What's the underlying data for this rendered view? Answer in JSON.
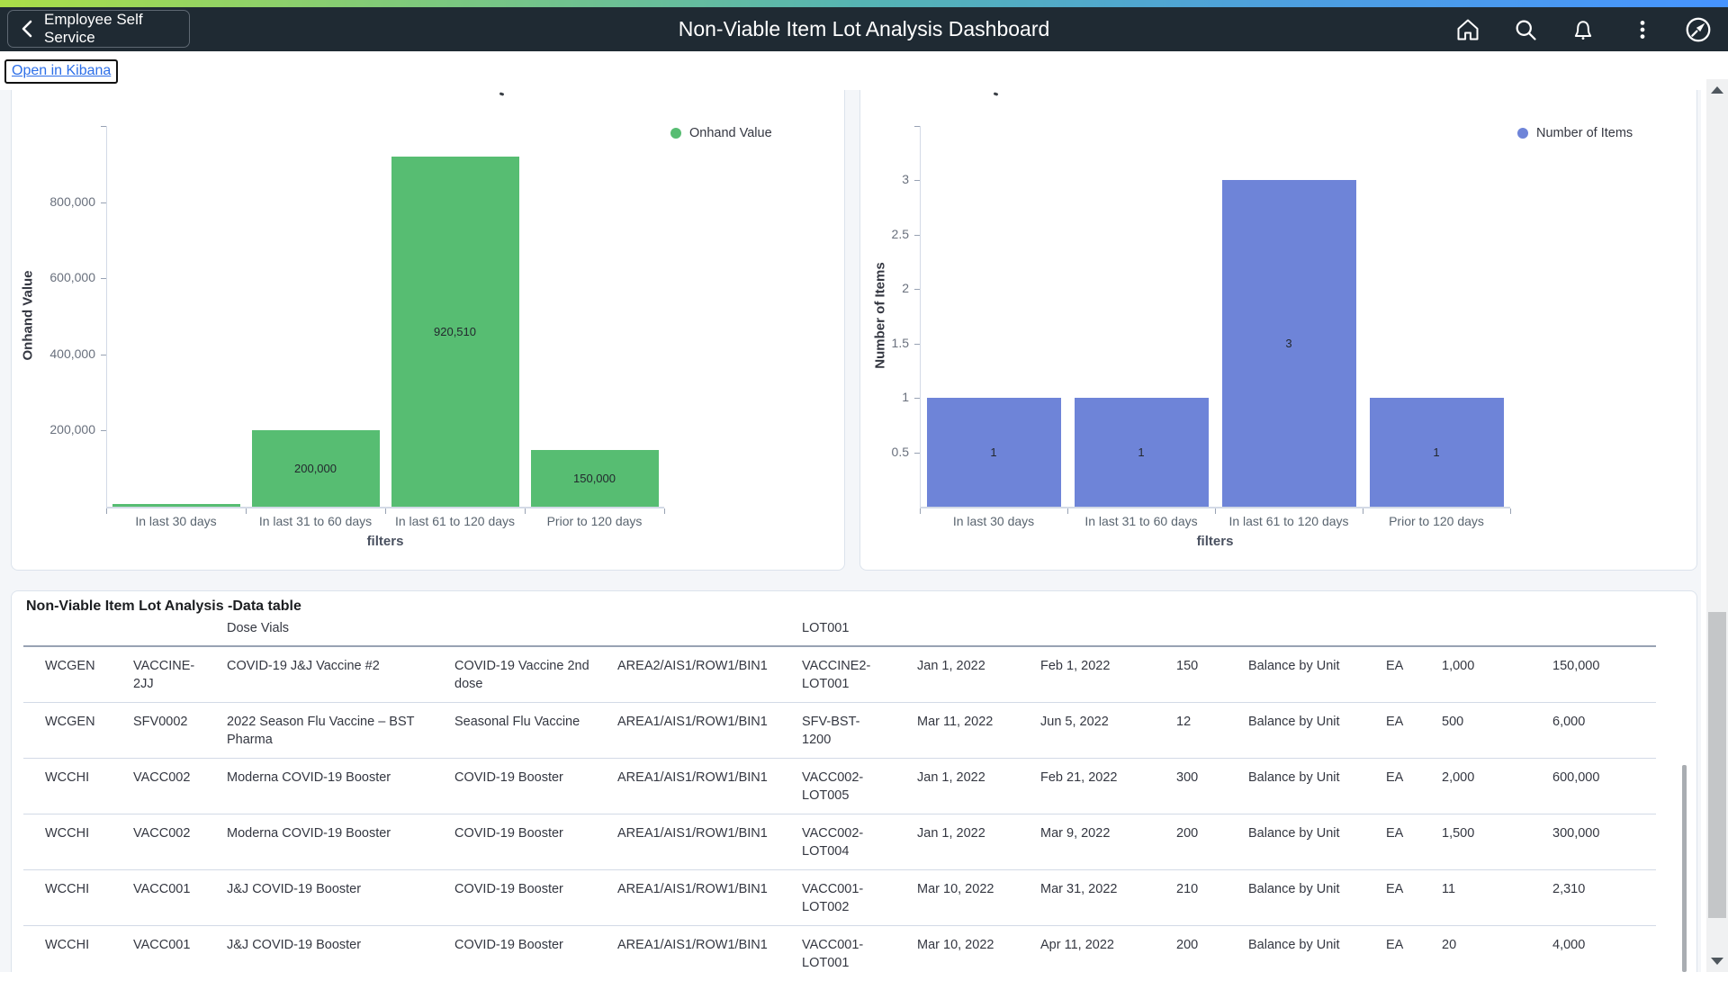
{
  "header": {
    "back_label": "Employee Self Service",
    "title": "Non-Viable Item Lot Analysis Dashboard",
    "icons": [
      "home-icon",
      "search-icon",
      "notifications-icon",
      "more-options-icon",
      "navbar-compass-icon"
    ]
  },
  "kibana_link": "Open in Kibana",
  "chart_data": [
    {
      "type": "bar",
      "legend_label": "Onhand Value",
      "legend_position": "top-right",
      "color": "#57bd72",
      "categories": [
        "In last 30 days",
        "In last 31 to 60 days",
        "In last 61 to 120 days",
        "Prior to 120 days"
      ],
      "values": [
        5000,
        200000,
        920510,
        150000
      ],
      "bar_labels": [
        "",
        "200,000",
        "920,510",
        "150,000"
      ],
      "title": "",
      "xlabel": "filters",
      "ylabel": "Onhand Value",
      "ylim": [
        0,
        1000000
      ],
      "yticks": [
        200000,
        400000,
        600000,
        800000
      ],
      "ytick_labels": [
        "200,000",
        "400,000",
        "600,000",
        "800,000"
      ],
      "grid": false
    },
    {
      "type": "bar",
      "legend_label": "Number of Items",
      "legend_position": "top-right",
      "color": "#6e84d8",
      "categories": [
        "In last 30 days",
        "In last 31 to 60 days",
        "In last 61 to 120 days",
        "Prior to 120 days"
      ],
      "values": [
        1,
        1,
        3,
        1
      ],
      "bar_labels": [
        "1",
        "1",
        "3",
        "1"
      ],
      "title": "",
      "xlabel": "filters",
      "ylabel": "Number of Items",
      "ylim": [
        0,
        3.5
      ],
      "yticks": [
        0.5,
        1,
        1.5,
        2,
        2.5,
        3
      ],
      "ytick_labels": [
        "0.5",
        "1",
        "1.5",
        "2",
        "2.5",
        "3"
      ],
      "grid": false
    }
  ],
  "table": {
    "title": "Non-Viable Item Lot Analysis -Data table",
    "partial_row": {
      "description": "Dose Vials",
      "lot": "LOT001"
    },
    "rows": [
      [
        "WCGEN",
        "VACCINE-2JJ",
        "COVID-19 J&J Vaccine #2",
        "COVID-19 Vaccine 2nd dose",
        "AREA2/AIS1/ROW1/BIN1",
        "VACCINE2-LOT001",
        "Jan 1, 2022",
        "Feb 1, 2022",
        "150",
        "Balance by Unit",
        "EA",
        "1,000",
        "150,000"
      ],
      [
        "WCGEN",
        "SFV0002",
        "2022 Season Flu Vaccine – BST Pharma",
        "Seasonal Flu Vaccine",
        "AREA1/AIS1/ROW1/BIN1",
        "SFV-BST-1200",
        "Mar 11, 2022",
        "Jun 5, 2022",
        "12",
        "Balance by Unit",
        "EA",
        "500",
        "6,000"
      ],
      [
        "WCCHI",
        "VACC002",
        "Moderna COVID-19 Booster",
        "COVID-19 Booster",
        "AREA1/AIS1/ROW1/BIN1",
        "VACC002-LOT005",
        "Jan 1, 2022",
        "Feb 21, 2022",
        "300",
        "Balance by Unit",
        "EA",
        "2,000",
        "600,000"
      ],
      [
        "WCCHI",
        "VACC002",
        "Moderna COVID-19 Booster",
        "COVID-19 Booster",
        "AREA1/AIS1/ROW1/BIN1",
        "VACC002-LOT004",
        "Jan 1, 2022",
        "Mar 9, 2022",
        "200",
        "Balance by Unit",
        "EA",
        "1,500",
        "300,000"
      ],
      [
        "WCCHI",
        "VACC001",
        "J&J COVID-19 Booster",
        "COVID-19 Booster",
        "AREA1/AIS1/ROW1/BIN1",
        "VACC001-LOT002",
        "Mar 10, 2022",
        "Mar 31, 2022",
        "210",
        "Balance by Unit",
        "EA",
        "11",
        "2,310"
      ],
      [
        "WCCHI",
        "VACC001",
        "J&J COVID-19 Booster",
        "COVID-19 Booster",
        "AREA1/AIS1/ROW1/BIN1",
        "VACC001-LOT001",
        "Mar 10, 2022",
        "Apr 11, 2022",
        "200",
        "Balance by Unit",
        "EA",
        "20",
        "4,000"
      ]
    ],
    "link_column_label": "Balance by Unit"
  },
  "colors": {
    "header_bar": "#1f2a33",
    "gradient_left": "#aade48",
    "gradient_right": "#4694ff",
    "bar_green": "#57bd72",
    "bar_blue": "#6e84d8",
    "link_blue": "#2368d8",
    "axis_gray": "#d3dae6"
  }
}
